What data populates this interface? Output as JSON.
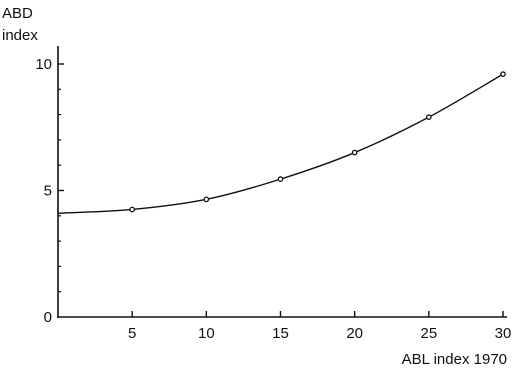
{
  "chart_data": {
    "type": "line",
    "title": "",
    "ylabel_lines": [
      "ABD",
      "index"
    ],
    "xlabel": "ABL index 1970",
    "xlim": [
      0,
      30
    ],
    "ylim": [
      0,
      10
    ],
    "x_ticks": [
      5,
      10,
      15,
      20,
      25,
      30
    ],
    "x_tick_labels": [
      "5",
      "10",
      "15",
      "20",
      "25",
      "30"
    ],
    "y_ticks": [
      0,
      5,
      10
    ],
    "y_tick_labels": [
      "0",
      "5",
      "10"
    ],
    "y_minor_ticks": [
      1,
      2,
      3,
      4,
      6,
      7,
      8,
      9
    ],
    "grid": false,
    "legend": "none",
    "series": [
      {
        "curve_x": [
          0,
          5,
          10,
          15,
          20,
          25,
          30
        ],
        "curve_y": [
          4.1,
          4.25,
          4.65,
          5.45,
          6.5,
          7.9,
          9.6
        ],
        "points_x": [
          5,
          10,
          15,
          20,
          25,
          30
        ],
        "points_y": [
          4.25,
          4.65,
          5.45,
          6.5,
          7.9,
          9.6
        ],
        "color": "#111111"
      }
    ]
  }
}
